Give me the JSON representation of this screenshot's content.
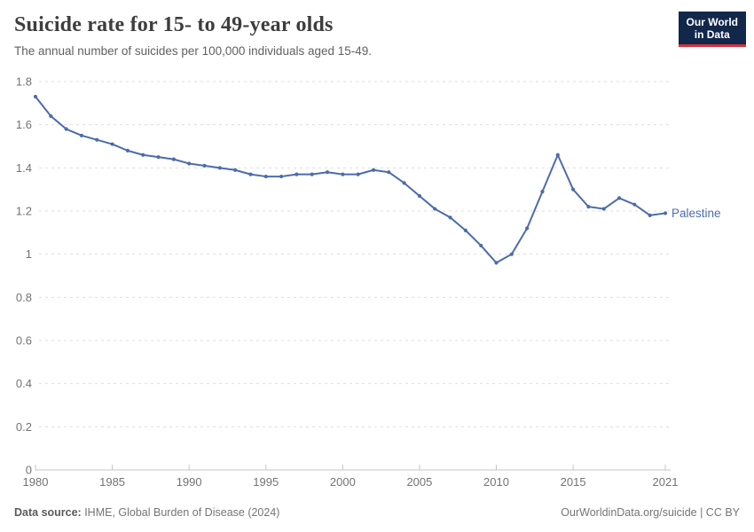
{
  "header": {
    "title": "Suicide rate for 15- to 49-year olds",
    "subtitle": "The annual number of suicides per 100,000 individuals aged 15-49.",
    "logo": {
      "line1": "Our World",
      "line2": "in Data"
    }
  },
  "chart_data": {
    "type": "line",
    "title": "Suicide rate for 15- to 49-year olds",
    "xlabel": "",
    "ylabel": "",
    "xlim": [
      1980,
      2021
    ],
    "ylim": [
      0,
      1.8
    ],
    "grid": true,
    "legend_position": "end-of-line",
    "x_ticks": [
      1980,
      1985,
      1990,
      1995,
      2000,
      2005,
      2010,
      2015,
      2021
    ],
    "y_ticks": [
      0,
      0.2,
      0.4,
      0.6,
      0.8,
      1,
      1.2,
      1.4,
      1.6,
      1.8
    ],
    "y_tick_labels": [
      "0",
      "0.2",
      "0.4",
      "0.6",
      "0.8",
      "1",
      "1.2",
      "1.4",
      "1.6",
      "1.8"
    ],
    "series": [
      {
        "name": "Palestine",
        "color": "#4c6caa",
        "x": [
          1980,
          1981,
          1982,
          1983,
          1984,
          1985,
          1986,
          1987,
          1988,
          1989,
          1990,
          1991,
          1992,
          1993,
          1994,
          1995,
          1996,
          1997,
          1998,
          1999,
          2000,
          2001,
          2002,
          2003,
          2004,
          2005,
          2006,
          2007,
          2008,
          2009,
          2010,
          2011,
          2012,
          2013,
          2014,
          2015,
          2016,
          2017,
          2018,
          2019,
          2020,
          2021
        ],
        "values": [
          1.73,
          1.64,
          1.58,
          1.55,
          1.53,
          1.51,
          1.48,
          1.46,
          1.45,
          1.44,
          1.42,
          1.41,
          1.4,
          1.39,
          1.37,
          1.36,
          1.36,
          1.37,
          1.37,
          1.38,
          1.37,
          1.37,
          1.39,
          1.38,
          1.33,
          1.27,
          1.21,
          1.17,
          1.11,
          1.04,
          0.96,
          1.0,
          1.12,
          1.29,
          1.46,
          1.3,
          1.22,
          1.21,
          1.26,
          1.23,
          1.18,
          1.19
        ]
      }
    ]
  },
  "colors": {
    "line": "#4c6caa",
    "gridline": "#dedede",
    "axis": "#c6c6c6",
    "tick_label": "#737373",
    "logo_bg": "#12284b",
    "logo_accent": "#d7323d"
  },
  "footer": {
    "source_label": "Data source:",
    "source_text": " IHME, Global Burden of Disease (2024)",
    "credit": "OurWorldinData.org/suicide | CC BY"
  }
}
